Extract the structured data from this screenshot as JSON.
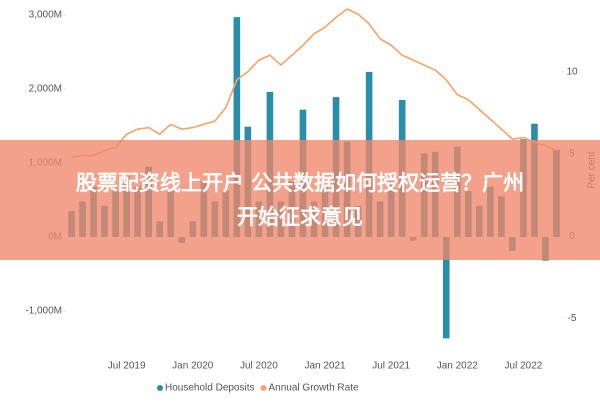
{
  "chart_data": {
    "type": "bar_line",
    "categories": [
      null,
      null,
      null,
      null,
      null,
      "Jul 2019",
      null,
      null,
      null,
      null,
      null,
      "Jan 2020",
      null,
      null,
      null,
      null,
      null,
      "Jul 2020",
      null,
      null,
      null,
      null,
      null,
      "Jan 2021",
      null,
      null,
      null,
      null,
      null,
      "Jul 2021",
      null,
      null,
      null,
      null,
      null,
      "Jan 2022",
      null,
      null,
      null,
      null,
      null,
      "Jul 2022",
      null,
      null,
      null
    ],
    "series": [
      {
        "name": "Household Deposits",
        "color": "#2b8ea8",
        "type": "bar",
        "values": [
          350,
          480,
          680,
          420,
          620,
          820,
          680,
          950,
          210,
          620,
          -80,
          210,
          750,
          480,
          620,
          2970,
          1490,
          480,
          1960,
          480,
          750,
          1720,
          480,
          680,
          1890,
          1290,
          420,
          2230,
          480,
          750,
          1850,
          -50,
          1130,
          1150,
          -1370,
          1220,
          620,
          420,
          680,
          550,
          -190,
          1320,
          1530,
          -320,
          1180
        ]
      },
      {
        "name": "Annual Growth Rate",
        "color": "#f4a36c",
        "type": "line",
        "axis": "y2",
        "values": [
          4.8,
          4.9,
          4.9,
          5.2,
          5.4,
          6.2,
          6.5,
          6.6,
          6.2,
          6.8,
          6.5,
          6.6,
          6.8,
          7.0,
          7.8,
          9.5,
          10.0,
          10.7,
          11.0,
          10.4,
          11.0,
          11.6,
          12.3,
          12.7,
          13.3,
          13.8,
          13.5,
          12.9,
          12.0,
          11.6,
          11.0,
          10.7,
          10.4,
          10.1,
          9.5,
          8.6,
          8.3,
          7.7,
          7.1,
          6.5,
          5.9,
          6.0,
          5.7,
          5.5,
          5.2
        ]
      }
    ],
    "ylim": [
      -1500,
      3100
    ],
    "yticks": [
      {
        "value": -1000,
        "label": "-1,000M"
      },
      {
        "value": 0,
        "label": "0M"
      },
      {
        "value": 1000,
        "label": "1,000M"
      },
      {
        "value": 2000,
        "label": "2,000M"
      },
      {
        "value": 3000,
        "label": "3,000M"
      }
    ],
    "y2lim": [
      -6.8,
      13.9
    ],
    "y2ticks": [
      -5,
      0,
      5,
      10
    ],
    "y2label": "Per cent",
    "legend": "bottom"
  },
  "banner": {
    "lines": [
      "股票配资线上开户 公共数据如何授权运营？广州",
      "开始征求意见"
    ]
  }
}
